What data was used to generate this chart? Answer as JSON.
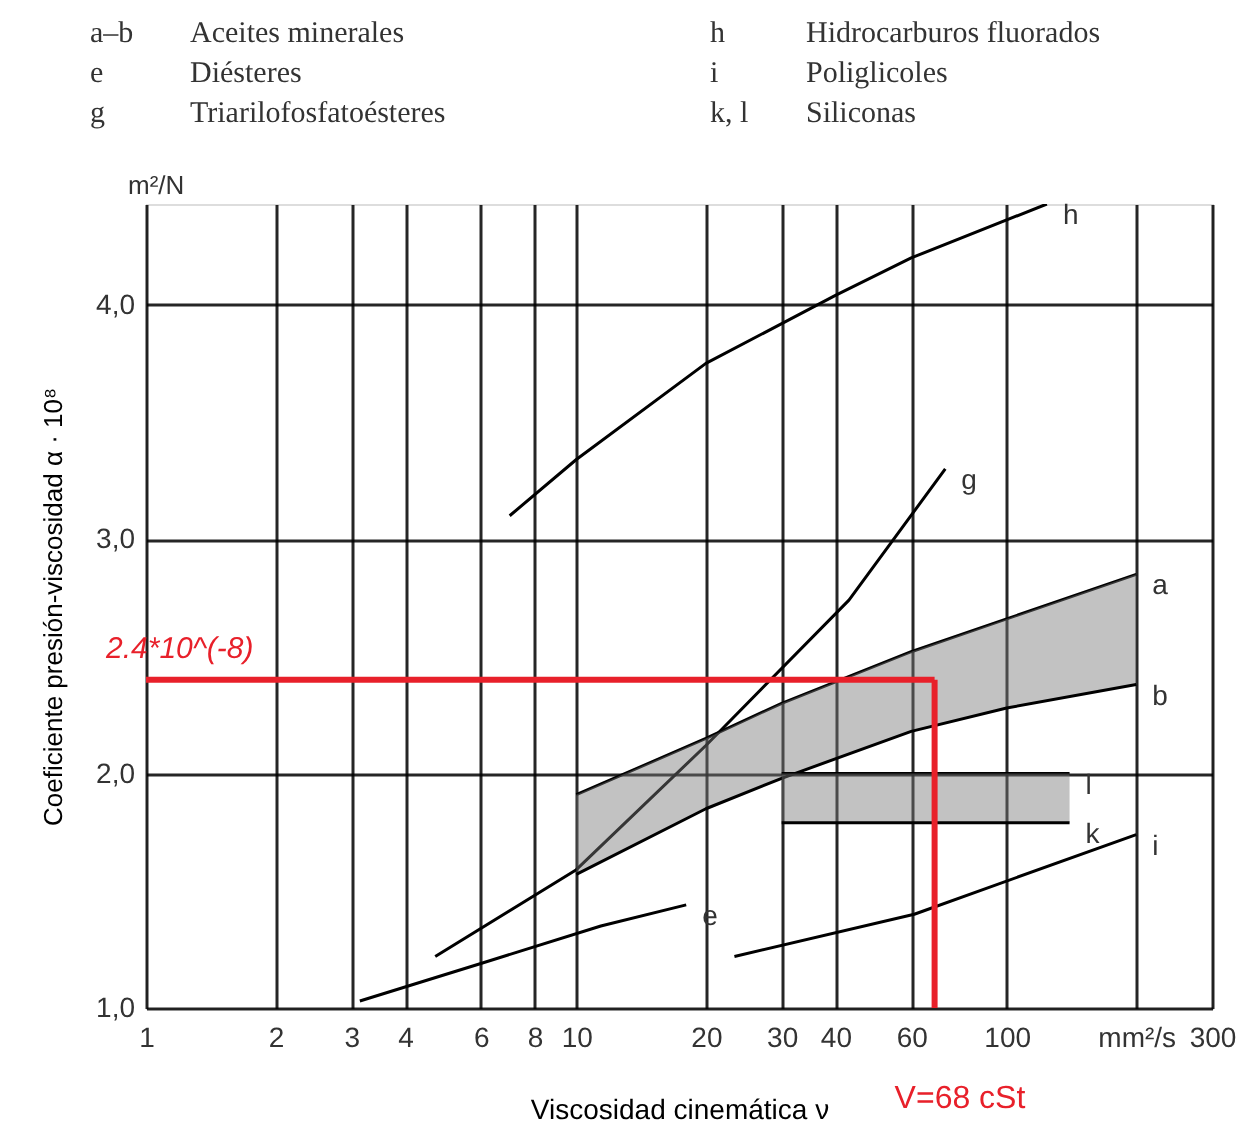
{
  "chart_data": {
    "type": "line",
    "xlabel": "Viscosidad cinemática ν",
    "ylabel": "Coeficiente presión-viscosidad α · 10⁸",
    "log": "x",
    "xlim": [
      1,
      300
    ],
    "ylim": [
      1,
      4.43
    ],
    "xticks": [
      1,
      2,
      3,
      4,
      6,
      8,
      10,
      20,
      30,
      40,
      60,
      100,
      {
        "value": 200,
        "label": "mm²/s"
      },
      300
    ],
    "yticks": [
      {
        "value": 1,
        "label": "1,0"
      },
      {
        "value": 2,
        "label": "2,0"
      },
      {
        "value": 3,
        "label": "3,0"
      },
      {
        "value": 4,
        "label": "4,0"
      }
    ],
    "grid": true,
    "series": [
      {
        "name": "h",
        "color": "#000000",
        "x": [
          7,
          10,
          20,
          40,
          60,
          124
        ],
        "values": [
          3.1,
          3.34,
          3.75,
          4.04,
          4.2,
          4.43
        ]
      },
      {
        "name": "g",
        "color": "#000000",
        "x": [
          4.7,
          10,
          20,
          43,
          72
        ],
        "values": [
          1.22,
          1.59,
          2.12,
          2.74,
          3.3
        ]
      },
      {
        "name": "a",
        "color": "#000000",
        "x": [
          10,
          20,
          30,
          60,
          100,
          200
        ],
        "values": [
          1.91,
          2.15,
          2.3,
          2.52,
          2.66,
          2.85
        ]
      },
      {
        "name": "b",
        "color": "#000000",
        "x": [
          10,
          20,
          30,
          60,
          100,
          200
        ],
        "values": [
          1.57,
          1.85,
          1.98,
          2.18,
          2.28,
          2.38
        ],
        "lower": [
          1.57,
          1.85,
          1.98,
          2.18,
          2.28,
          2.38
        ],
        "upper": [
          1.91,
          2.15,
          2.3,
          2.52,
          2.66,
          2.85
        ]
      },
      {
        "name": "l",
        "color": "#000000",
        "x": [
          30,
          140
        ],
        "values": [
          2.0,
          2.0
        ]
      },
      {
        "name": "k",
        "color": "#000000",
        "x": [
          30,
          140
        ],
        "values": [
          1.79,
          1.79
        ],
        "lower": [
          1.79,
          1.79
        ],
        "upper": [
          2.0,
          2.0
        ]
      },
      {
        "name": "e",
        "color": "#000000",
        "x": [
          3.14,
          6,
          11.4,
          18
        ],
        "values": [
          1.03,
          1.19,
          1.35,
          1.44
        ]
      },
      {
        "name": "i",
        "color": "#000000",
        "x": [
          23.3,
          61,
          200
        ],
        "values": [
          1.22,
          1.4,
          1.74
        ]
      }
    ],
    "ref_lines": [
      {
        "axis": "y",
        "value": 2.4,
        "label": "2.4*10^(-8)",
        "color": "#e8202a"
      },
      {
        "axis": "x",
        "value": 68,
        "label": "V=68 cSt",
        "color": "#e8202a"
      }
    ],
    "annotations": [
      "a–b",
      "Aceites minerales",
      "h",
      "Hidrocarburos fluorados",
      "e",
      "Diésteres",
      "i",
      "Poliglicoles",
      "g",
      "Triarilofosfatoésteres",
      "k, l",
      "Siliconas",
      "m²/N"
    ]
  }
}
